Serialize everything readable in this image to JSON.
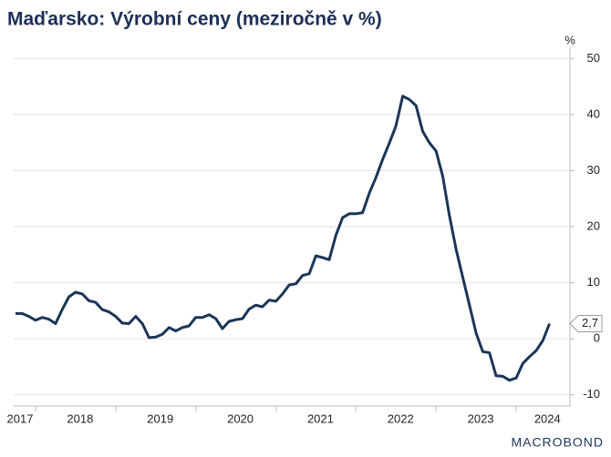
{
  "chart_data": {
    "type": "line",
    "title": "Maďarsko: Výrobní ceny (meziročně v %)",
    "y_unit": "%",
    "logo": "MACROBOND",
    "categories": [
      "2017",
      null,
      null,
      null,
      null,
      null,
      null,
      null,
      null,
      "2018",
      null,
      null,
      null,
      null,
      null,
      null,
      null,
      null,
      null,
      null,
      null,
      "2019",
      null,
      null,
      null,
      null,
      null,
      null,
      null,
      null,
      null,
      null,
      null,
      "2020",
      null,
      null,
      null,
      null,
      null,
      null,
      null,
      null,
      null,
      null,
      null,
      "2021",
      null,
      null,
      null,
      null,
      null,
      null,
      null,
      null,
      null,
      null,
      null,
      "2022",
      null,
      null,
      null,
      null,
      null,
      null,
      null,
      null,
      null,
      null,
      null,
      "2023",
      null,
      null,
      null,
      null,
      null,
      null,
      null,
      null,
      null,
      "2024",
      null
    ],
    "series": [
      {
        "name": "Výrobní ceny",
        "color": "#1c3557",
        "values": [
          4.5,
          4.5,
          4.0,
          3.3,
          3.8,
          3.5,
          2.7,
          5.2,
          7.5,
          8.3,
          8.0,
          6.8,
          6.5,
          5.2,
          4.8,
          4.0,
          2.8,
          2.7,
          4.0,
          2.7,
          0.2,
          0.3,
          0.8,
          2.0,
          1.4,
          2.0,
          2.3,
          3.8,
          3.8,
          4.3,
          3.6,
          1.8,
          3.1,
          3.4,
          3.6,
          5.3,
          6.0,
          5.7,
          6.9,
          6.7,
          8.0,
          9.6,
          9.8,
          11.3,
          11.6,
          14.8,
          14.5,
          14.1,
          18.5,
          21.6,
          22.3,
          22.3,
          22.5,
          26.0,
          28.8,
          32.0,
          34.9,
          38.0,
          43.3,
          42.7,
          41.6,
          37.0,
          35.0,
          33.5,
          29.0,
          22.0,
          16.0,
          11.0,
          6.0,
          1.0,
          -2.3,
          -2.5,
          -6.6,
          -6.7,
          -7.4,
          -7.0,
          -4.4,
          -3.2,
          -2.1,
          -0.3,
          2.7
        ],
        "value_labels": [
          null,
          null,
          null,
          null,
          null,
          null,
          null,
          null,
          null,
          null,
          null,
          null,
          null,
          null,
          null,
          null,
          null,
          null,
          null,
          null,
          null,
          null,
          null,
          null,
          null,
          null,
          null,
          null,
          null,
          null,
          null,
          null,
          null,
          null,
          null,
          null,
          null,
          null,
          null,
          null,
          null,
          null,
          null,
          null,
          null,
          null,
          null,
          null,
          null,
          null,
          null,
          null,
          null,
          null,
          null,
          null,
          null,
          null,
          null,
          null,
          null,
          null,
          null,
          null,
          null,
          null,
          null,
          null,
          null,
          null,
          null,
          null,
          null,
          null,
          null,
          null,
          null,
          null,
          null,
          null,
          "2,7"
        ]
      }
    ],
    "ylim": [
      -12,
      52
    ],
    "yticks": [
      -10,
      0,
      10,
      20,
      30,
      40,
      50
    ],
    "grid": true
  }
}
